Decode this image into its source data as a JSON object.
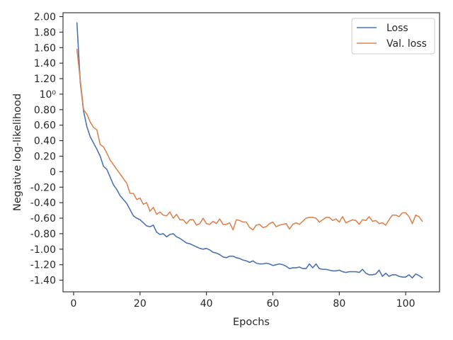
{
  "chart_data": {
    "type": "line",
    "xlabel": "Epochs",
    "ylabel": "Negative log-likelihood",
    "xlim": [
      -3.2,
      110.2
    ],
    "ylim": [
      -1.55,
      2.05
    ],
    "x_ticks": [
      0,
      20,
      40,
      60,
      80,
      100
    ],
    "x_tick_labels": [
      "0",
      "20",
      "40",
      "60",
      "80",
      "100"
    ],
    "y_ticks": [
      2.0,
      1.8,
      1.6,
      1.4,
      1.2,
      1.0,
      0.8,
      0.6,
      0.4,
      0.2,
      0.0,
      -0.2,
      -0.4,
      -0.6,
      -0.8,
      -1.0,
      -1.2,
      -1.4
    ],
    "y_tick_labels": [
      "2.00",
      "1.80",
      "1.60",
      "1.40",
      "1.20",
      "10⁰",
      "0.80",
      "0.60",
      "0.40",
      "0.20",
      "0",
      "-0.20",
      "-0.40",
      "-0.60",
      "-0.80",
      "-1.00",
      "-1.20",
      "-1.40"
    ],
    "grid": false,
    "legend_position": "top-right",
    "colors": {
      "Loss": "#4c72b0",
      "Val. loss": "#dd8452",
      "axes": "#262626"
    },
    "series": [
      {
        "name": "Loss",
        "x": [
          1,
          2,
          3,
          4,
          5,
          6,
          7,
          8,
          9,
          10,
          11,
          12,
          13,
          14,
          15,
          16,
          17,
          18,
          19,
          20,
          21,
          22,
          23,
          24,
          25,
          26,
          27,
          28,
          29,
          30,
          31,
          32,
          33,
          34,
          35,
          36,
          37,
          38,
          39,
          40,
          41,
          42,
          43,
          44,
          45,
          46,
          47,
          48,
          49,
          50,
          51,
          52,
          53,
          54,
          55,
          56,
          57,
          58,
          59,
          60,
          61,
          62,
          63,
          64,
          65,
          66,
          67,
          68,
          69,
          70,
          71,
          72,
          73,
          74,
          75,
          76,
          77,
          78,
          79,
          80,
          81,
          82,
          83,
          84,
          85,
          86,
          87,
          88,
          89,
          90,
          91,
          92,
          93,
          94,
          95,
          96,
          97,
          98,
          99,
          100,
          101,
          102,
          103,
          104,
          105
        ],
        "values": [
          1.92,
          1.15,
          0.78,
          0.58,
          0.45,
          0.37,
          0.29,
          0.2,
          0.07,
          0.03,
          -0.07,
          -0.17,
          -0.23,
          -0.31,
          -0.36,
          -0.41,
          -0.49,
          -0.57,
          -0.6,
          -0.62,
          -0.66,
          -0.7,
          -0.71,
          -0.69,
          -0.78,
          -0.81,
          -0.8,
          -0.84,
          -0.81,
          -0.8,
          -0.84,
          -0.86,
          -0.89,
          -0.92,
          -0.93,
          -0.95,
          -0.97,
          -0.99,
          -1.0,
          -0.99,
          -1.01,
          -1.04,
          -1.05,
          -1.07,
          -1.1,
          -1.11,
          -1.09,
          -1.09,
          -1.11,
          -1.12,
          -1.14,
          -1.15,
          -1.17,
          -1.15,
          -1.18,
          -1.19,
          -1.19,
          -1.18,
          -1.19,
          -1.21,
          -1.2,
          -1.19,
          -1.2,
          -1.22,
          -1.25,
          -1.24,
          -1.24,
          -1.23,
          -1.25,
          -1.25,
          -1.19,
          -1.24,
          -1.19,
          -1.25,
          -1.26,
          -1.26,
          -1.27,
          -1.28,
          -1.28,
          -1.27,
          -1.29,
          -1.3,
          -1.29,
          -1.29,
          -1.29,
          -1.3,
          -1.26,
          -1.31,
          -1.33,
          -1.33,
          -1.32,
          -1.27,
          -1.35,
          -1.31,
          -1.35,
          -1.33,
          -1.33,
          -1.35,
          -1.36,
          -1.36,
          -1.33,
          -1.37,
          -1.32,
          -1.34,
          -1.37
        ]
      },
      {
        "name": "Val. loss",
        "x": [
          1,
          2,
          3,
          4,
          5,
          6,
          7,
          8,
          9,
          10,
          11,
          12,
          13,
          14,
          15,
          16,
          17,
          18,
          19,
          20,
          21,
          22,
          23,
          24,
          25,
          26,
          27,
          28,
          29,
          30,
          31,
          32,
          33,
          34,
          35,
          36,
          37,
          38,
          39,
          40,
          41,
          42,
          43,
          44,
          45,
          46,
          47,
          48,
          49,
          50,
          51,
          52,
          53,
          54,
          55,
          56,
          57,
          58,
          59,
          60,
          61,
          62,
          63,
          64,
          65,
          66,
          67,
          68,
          69,
          70,
          71,
          72,
          73,
          74,
          75,
          76,
          77,
          78,
          79,
          80,
          81,
          82,
          83,
          84,
          85,
          86,
          87,
          88,
          89,
          90,
          91,
          92,
          93,
          94,
          95,
          96,
          97,
          98,
          99,
          100,
          101,
          102,
          103,
          104,
          105
        ],
        "values": [
          1.58,
          1.18,
          0.8,
          0.74,
          0.64,
          0.57,
          0.54,
          0.35,
          0.32,
          0.24,
          0.15,
          0.09,
          0.03,
          -0.03,
          -0.09,
          -0.15,
          -0.28,
          -0.28,
          -0.36,
          -0.34,
          -0.42,
          -0.4,
          -0.51,
          -0.46,
          -0.55,
          -0.52,
          -0.56,
          -0.57,
          -0.52,
          -0.6,
          -0.55,
          -0.62,
          -0.62,
          -0.67,
          -0.62,
          -0.62,
          -0.69,
          -0.67,
          -0.6,
          -0.67,
          -0.68,
          -0.64,
          -0.67,
          -0.61,
          -0.68,
          -0.68,
          -0.66,
          -0.75,
          -0.62,
          -0.63,
          -0.65,
          -0.65,
          -0.72,
          -0.75,
          -0.69,
          -0.68,
          -0.72,
          -0.71,
          -0.67,
          -0.65,
          -0.71,
          -0.69,
          -0.68,
          -0.67,
          -0.74,
          -0.68,
          -0.66,
          -0.68,
          -0.64,
          -0.6,
          -0.59,
          -0.59,
          -0.6,
          -0.65,
          -0.62,
          -0.59,
          -0.59,
          -0.63,
          -0.61,
          -0.65,
          -0.58,
          -0.66,
          -0.64,
          -0.62,
          -0.63,
          -0.68,
          -0.62,
          -0.63,
          -0.58,
          -0.64,
          -0.63,
          -0.67,
          -0.66,
          -0.69,
          -0.62,
          -0.56,
          -0.56,
          -0.58,
          -0.53,
          -0.53,
          -0.58,
          -0.67,
          -0.56,
          -0.58,
          -0.64
        ]
      }
    ]
  }
}
